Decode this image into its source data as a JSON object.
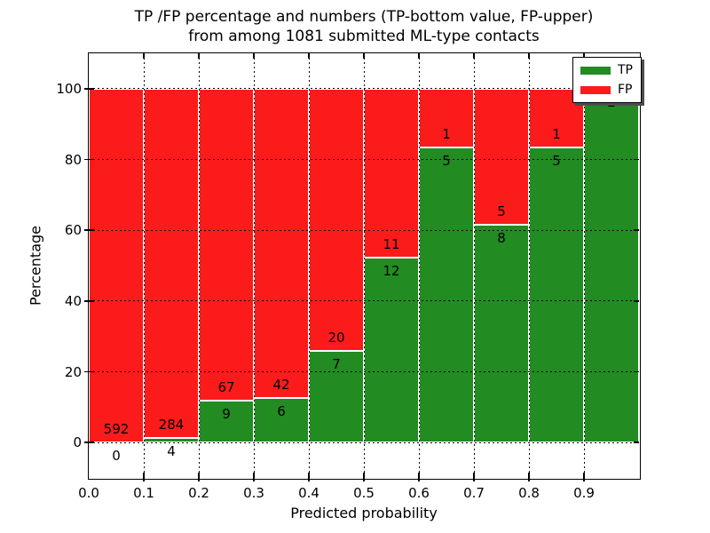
{
  "chart_data": {
    "type": "bar",
    "stacked": true,
    "title_lines": [
      "TP /FP percentage and numbers (TP-bottom value, FP-upper)",
      "from among 1081 submitted ML-type contacts"
    ],
    "xlabel": "Predicted probability",
    "ylabel": "Percentage",
    "categories": [
      "0.0-0.1",
      "0.1-0.2",
      "0.2-0.3",
      "0.3-0.4",
      "0.4-0.5",
      "0.5-0.6",
      "0.6-0.7",
      "0.7-0.8",
      "0.8-0.9",
      "0.9-1.0"
    ],
    "series": [
      {
        "name": "TP",
        "color": "#228b22",
        "values": [
          0,
          4,
          9,
          6,
          7,
          12,
          5,
          8,
          5,
          2
        ]
      },
      {
        "name": "FP",
        "color": "#fb1b1b",
        "values": [
          592,
          284,
          67,
          42,
          20,
          11,
          1,
          5,
          1,
          0
        ]
      }
    ],
    "tp_percent": [
      0,
      1.39,
      11.84,
      12.5,
      25.93,
      52.17,
      83.33,
      61.54,
      83.33,
      100
    ],
    "bar_labels": [
      {
        "fp": "592",
        "tp": "0"
      },
      {
        "fp": "284",
        "tp": "4"
      },
      {
        "fp": "67",
        "tp": "9"
      },
      {
        "fp": "42",
        "tp": "6"
      },
      {
        "fp": "20",
        "tp": "7"
      },
      {
        "fp": "11",
        "tp": "12"
      },
      {
        "fp": "1",
        "tp": "5"
      },
      {
        "fp": "5",
        "tp": "8"
      },
      {
        "fp": "1",
        "tp": "5"
      },
      {
        "fp": null,
        "tp": "2"
      }
    ],
    "xticks": [
      "0.0",
      "0.1",
      "0.2",
      "0.3",
      "0.4",
      "0.5",
      "0.6",
      "0.7",
      "0.8",
      "0.9"
    ],
    "yticks": [
      0,
      20,
      40,
      60,
      80,
      100
    ],
    "xlim": [
      0.0,
      1.0
    ],
    "ylim": [
      -10,
      110
    ],
    "grid": true,
    "legend": {
      "position": "upper right",
      "entries": [
        "TP",
        "FP"
      ]
    },
    "colors": {
      "tp": "#228b22",
      "fp": "#fb1b1b",
      "grid": "#000000",
      "bar_edge": "#ffffff",
      "background": "#ffffff"
    }
  }
}
